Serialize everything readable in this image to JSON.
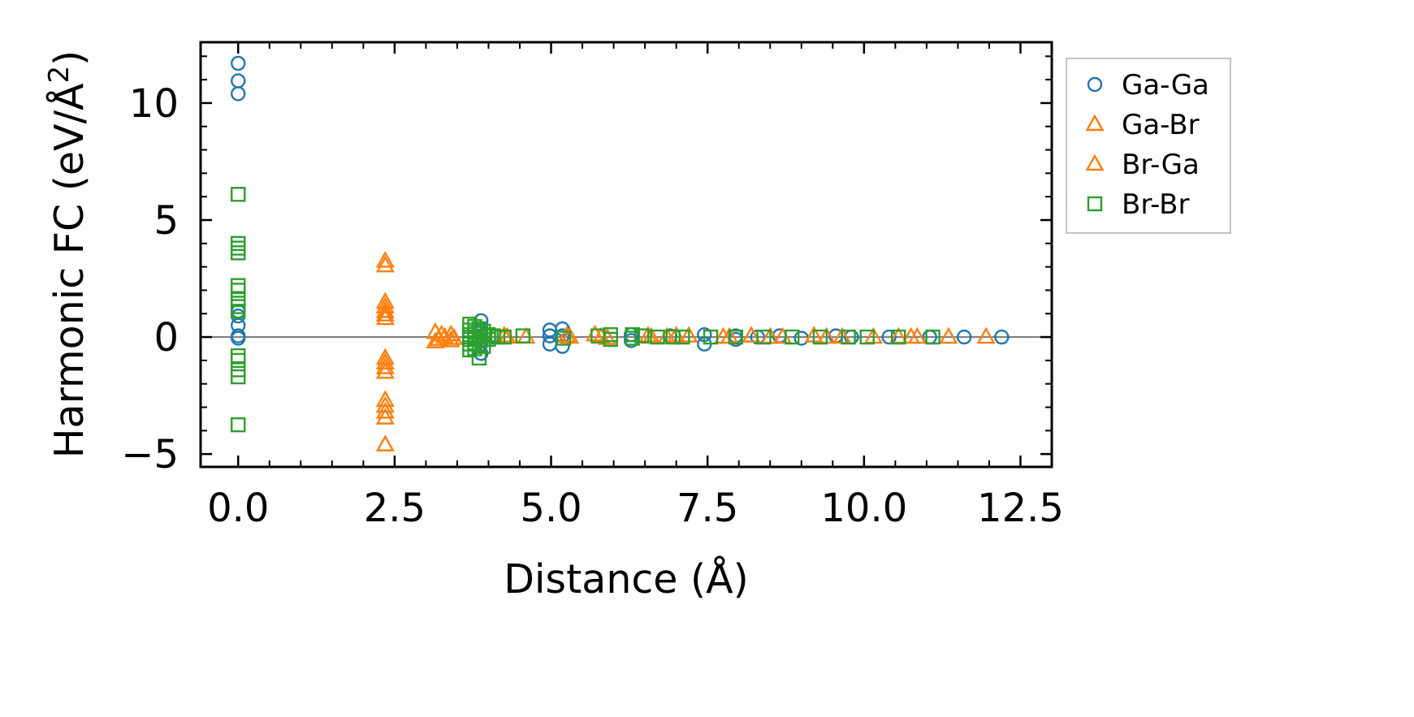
{
  "chart_data": {
    "type": "scatter",
    "title": "",
    "xlabel": "Distance (Å)",
    "ylabel_main": "Harmonic FC (eV/Å",
    "ylabel_sup": "2",
    "ylabel_close": ")",
    "xlim": [
      -0.6,
      13.0
    ],
    "ylim": [
      -5.55,
      12.6
    ],
    "xticks": [
      0.0,
      2.5,
      5.0,
      7.5,
      10.0,
      12.5
    ],
    "xtick_labels": [
      "0.0",
      "2.5",
      "5.0",
      "7.5",
      "10.0",
      "12.5"
    ],
    "xminor": [
      0.5,
      1.0,
      1.5,
      2.0,
      3.0,
      3.5,
      4.0,
      4.5,
      5.5,
      6.0,
      6.5,
      7.0,
      8.0,
      8.5,
      9.0,
      9.5,
      10.5,
      11.0,
      11.5,
      12.0
    ],
    "yticks": [
      -5,
      0,
      5,
      10
    ],
    "ytick_labels": [
      "−5",
      "0",
      "5",
      "10"
    ],
    "yminor": [
      -4,
      -3,
      -2,
      -1,
      1,
      2,
      3,
      4,
      6,
      7,
      8,
      9,
      11,
      12
    ],
    "zero_line": 0,
    "legend_position": "outside-right-top",
    "series": [
      {
        "name": "Ga-Ga",
        "marker": "circle",
        "color": "#1f77b4",
        "points": [
          [
            0,
            11.7
          ],
          [
            0,
            10.95
          ],
          [
            0,
            10.4
          ],
          [
            0,
            1.1
          ],
          [
            0,
            0.9
          ],
          [
            0,
            0.5
          ],
          [
            0,
            0.05
          ],
          [
            0,
            -0.05
          ],
          [
            3.88,
            0.7
          ],
          [
            3.88,
            0.35
          ],
          [
            3.88,
            0.05
          ],
          [
            3.88,
            -0.3
          ],
          [
            3.88,
            -0.7
          ],
          [
            4.98,
            0.3
          ],
          [
            4.98,
            0.05
          ],
          [
            4.98,
            -0.3
          ],
          [
            5.18,
            0.35
          ],
          [
            5.18,
            0.05
          ],
          [
            5.18,
            -0.4
          ],
          [
            6.28,
            0.1
          ],
          [
            6.28,
            -0.15
          ],
          [
            6.9,
            0.05
          ],
          [
            7.45,
            0.1
          ],
          [
            7.45,
            -0.3
          ],
          [
            7.95,
            0.05
          ],
          [
            7.95,
            -0.1
          ],
          [
            8.3,
            0.0
          ],
          [
            8.65,
            0.05
          ],
          [
            9.0,
            -0.05
          ],
          [
            9.55,
            0.05
          ],
          [
            9.8,
            0.0
          ],
          [
            10.4,
            0.0
          ],
          [
            11.05,
            0.0
          ],
          [
            11.6,
            0.0
          ],
          [
            12.2,
            0.0
          ]
        ]
      },
      {
        "name": "Ga-Br",
        "marker": "triangle",
        "color": "#ff7f0e",
        "points": [
          [
            2.35,
            3.25
          ],
          [
            2.35,
            1.5
          ],
          [
            2.35,
            1.1
          ],
          [
            2.35,
            0.8
          ],
          [
            2.35,
            -0.9
          ],
          [
            2.35,
            -1.3
          ],
          [
            2.35,
            -2.7
          ],
          [
            2.35,
            -3.2
          ],
          [
            2.35,
            -4.6
          ],
          [
            3.15,
            0.2
          ],
          [
            3.15,
            -0.2
          ],
          [
            3.25,
            0.1
          ],
          [
            3.4,
            0.1
          ],
          [
            3.4,
            -0.15
          ],
          [
            4.25,
            0.05
          ],
          [
            4.6,
            0.0
          ],
          [
            5.3,
            0.0
          ],
          [
            5.7,
            0.1
          ],
          [
            5.9,
            -0.05
          ],
          [
            6.55,
            0.05
          ],
          [
            6.85,
            0.0
          ],
          [
            7.2,
            0.05
          ],
          [
            7.75,
            0.0
          ],
          [
            8.2,
            0.05
          ],
          [
            8.7,
            0.0
          ],
          [
            9.2,
            0.05
          ],
          [
            9.65,
            0.0
          ],
          [
            10.15,
            0.0
          ],
          [
            10.75,
            0.0
          ],
          [
            11.35,
            0.0
          ],
          [
            11.95,
            0.0
          ]
        ]
      },
      {
        "name": "Br-Ga",
        "marker": "triangle",
        "color": "#ff7f0e",
        "points": [
          [
            2.35,
            3.05
          ],
          [
            2.35,
            1.3
          ],
          [
            2.35,
            0.95
          ],
          [
            2.35,
            -1.1
          ],
          [
            2.35,
            -1.5
          ],
          [
            2.35,
            -2.95
          ],
          [
            2.35,
            -3.45
          ],
          [
            3.2,
            -0.1
          ],
          [
            3.3,
            0.0
          ],
          [
            3.45,
            -0.05
          ],
          [
            4.3,
            0.0
          ],
          [
            5.25,
            0.05
          ],
          [
            5.8,
            0.0
          ],
          [
            6.6,
            0.0
          ],
          [
            7.0,
            0.05
          ],
          [
            7.85,
            0.0
          ],
          [
            8.5,
            0.0
          ],
          [
            9.4,
            0.0
          ],
          [
            10.55,
            0.0
          ],
          [
            10.85,
            0.0
          ]
        ]
      },
      {
        "name": "Br-Br",
        "marker": "square",
        "color": "#2ca02c",
        "points": [
          [
            0,
            6.1
          ],
          [
            0,
            4.0
          ],
          [
            0,
            3.8
          ],
          [
            0,
            3.6
          ],
          [
            0,
            2.2
          ],
          [
            0,
            2.0
          ],
          [
            0,
            1.6
          ],
          [
            0,
            1.3
          ],
          [
            0,
            1.1
          ],
          [
            0,
            -0.8
          ],
          [
            0,
            -1.0
          ],
          [
            0,
            -1.4
          ],
          [
            0,
            -1.7
          ],
          [
            0,
            -3.75
          ],
          [
            3.7,
            0.55
          ],
          [
            3.7,
            0.3
          ],
          [
            3.7,
            0.1
          ],
          [
            3.7,
            -0.1
          ],
          [
            3.7,
            -0.3
          ],
          [
            3.7,
            -0.55
          ],
          [
            3.78,
            0.45
          ],
          [
            3.78,
            0.2
          ],
          [
            3.78,
            -0.05
          ],
          [
            3.78,
            -0.25
          ],
          [
            3.78,
            -0.5
          ],
          [
            3.85,
            0.35
          ],
          [
            3.85,
            0.0
          ],
          [
            3.85,
            -0.35
          ],
          [
            3.85,
            -0.9
          ],
          [
            3.92,
            0.25
          ],
          [
            3.92,
            -0.1
          ],
          [
            3.92,
            -0.4
          ],
          [
            4.0,
            0.1
          ],
          [
            4.0,
            -0.1
          ],
          [
            4.08,
            0.05
          ],
          [
            4.15,
            0.0
          ],
          [
            4.25,
            0.0
          ],
          [
            4.55,
            0.05
          ],
          [
            5.2,
            -0.05
          ],
          [
            5.75,
            0.05
          ],
          [
            5.95,
            0.1
          ],
          [
            5.95,
            -0.1
          ],
          [
            6.3,
            0.1
          ],
          [
            6.3,
            -0.05
          ],
          [
            6.45,
            0.05
          ],
          [
            6.7,
            0.0
          ],
          [
            6.95,
            0.0
          ],
          [
            7.1,
            0.0
          ],
          [
            7.55,
            0.0
          ],
          [
            7.95,
            0.0
          ],
          [
            8.4,
            0.0
          ],
          [
            8.85,
            0.0
          ],
          [
            9.3,
            0.0
          ],
          [
            9.75,
            0.0
          ],
          [
            10.05,
            0.0
          ],
          [
            10.55,
            0.0
          ],
          [
            11.1,
            0.0
          ]
        ]
      }
    ]
  }
}
